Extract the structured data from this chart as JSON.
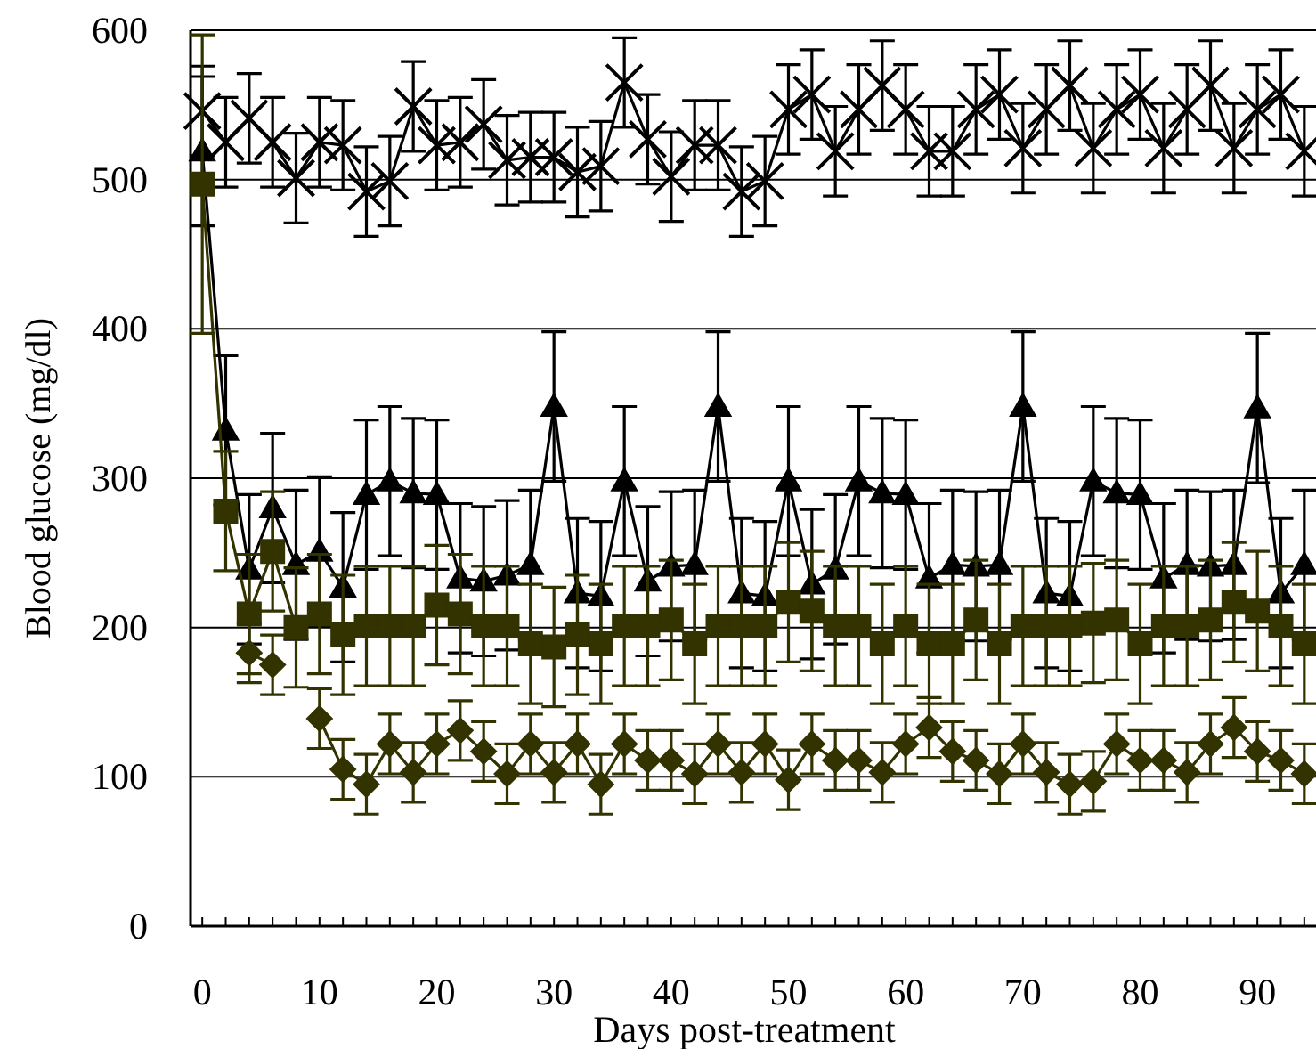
{
  "chart_data": {
    "type": "line",
    "xlabel": "Days post-treatment",
    "ylabel": "Blood glucose (mg/dl)",
    "x": [
      0,
      2,
      4,
      6,
      8,
      10,
      12,
      14,
      16,
      18,
      20,
      22,
      24,
      26,
      28,
      30,
      32,
      34,
      36,
      38,
      40,
      42,
      44,
      46,
      48,
      50,
      52,
      54,
      56,
      58,
      60,
      62,
      64,
      66,
      68,
      70,
      72,
      74,
      76,
      78,
      80,
      82,
      84,
      86,
      88,
      90,
      92,
      94
    ],
    "xlim": [
      -1,
      95
    ],
    "xticks": [
      0,
      {
        "value": 2,
        "label": null
      },
      {
        "value": 4,
        "label": null
      },
      {
        "value": 6,
        "label": null
      },
      {
        "value": 8,
        "label": null
      },
      10,
      {
        "value": 12,
        "label": null
      },
      {
        "value": 14,
        "label": null
      },
      {
        "value": 16,
        "label": null
      },
      {
        "value": 18,
        "label": null
      },
      20,
      {
        "value": 22,
        "label": null
      },
      {
        "value": 24,
        "label": null
      },
      {
        "value": 26,
        "label": null
      },
      {
        "value": 28,
        "label": null
      },
      30,
      {
        "value": 32,
        "label": null
      },
      {
        "value": 34,
        "label": null
      },
      {
        "value": 36,
        "label": null
      },
      {
        "value": 38,
        "label": null
      },
      40,
      {
        "value": 42,
        "label": null
      },
      {
        "value": 44,
        "label": null
      },
      {
        "value": 46,
        "label": null
      },
      {
        "value": 48,
        "label": null
      },
      50,
      {
        "value": 52,
        "label": null
      },
      {
        "value": 54,
        "label": null
      },
      {
        "value": 56,
        "label": null
      },
      {
        "value": 58,
        "label": null
      },
      60,
      {
        "value": 62,
        "label": null
      },
      {
        "value": 64,
        "label": null
      },
      {
        "value": 66,
        "label": null
      },
      {
        "value": 68,
        "label": null
      },
      70,
      {
        "value": 72,
        "label": null
      },
      {
        "value": 74,
        "label": null
      },
      {
        "value": 76,
        "label": null
      },
      {
        "value": 78,
        "label": null
      },
      80,
      {
        "value": 82,
        "label": null
      },
      {
        "value": 84,
        "label": null
      },
      {
        "value": 86,
        "label": null
      },
      {
        "value": 88,
        "label": null
      },
      90,
      {
        "value": 92,
        "label": null
      },
      {
        "value": 94,
        "label": null
      }
    ],
    "ylim": [
      0,
      600
    ],
    "yticks": [
      0,
      100,
      200,
      300,
      400,
      500,
      600
    ],
    "grid": "y",
    "series": [
      {
        "color": "#000000",
        "marker": "cross",
        "errors": [
          30,
          30,
          30,
          30,
          30,
          30,
          30,
          30,
          30,
          30,
          30,
          30,
          30,
          30,
          30,
          30,
          30,
          30,
          30,
          30,
          30,
          30,
          30,
          30,
          30,
          30,
          30,
          30,
          30,
          30,
          30,
          30,
          30,
          30,
          30,
          30,
          30,
          30,
          30,
          30,
          30,
          30,
          30,
          30,
          30,
          30,
          30,
          30
        ],
        "values": [
          546,
          525,
          541,
          525,
          501,
          525,
          523,
          492,
          499,
          549,
          523,
          525,
          537,
          513,
          515,
          515,
          505,
          509,
          565,
          527,
          502,
          523,
          523,
          492,
          499,
          547,
          557,
          519,
          547,
          563,
          547,
          519,
          519,
          547,
          557,
          521,
          547,
          563,
          521,
          547,
          557,
          521,
          547,
          563,
          521,
          547,
          557,
          519
        ]
      },
      {
        "color": "#000000",
        "marker": "triangle",
        "errors": [
          50,
          50,
          50,
          50,
          50,
          50,
          50,
          50,
          50,
          50,
          50,
          50,
          50,
          50,
          50,
          50,
          50,
          50,
          50,
          50,
          50,
          50,
          50,
          50,
          50,
          50,
          50,
          50,
          50,
          50,
          50,
          50,
          50,
          50,
          50,
          50,
          50,
          50,
          50,
          50,
          50,
          50,
          50,
          50,
          50,
          50,
          50,
          50
        ],
        "values": [
          519,
          332,
          239,
          280,
          242,
          251,
          227,
          289,
          298,
          290,
          289,
          233,
          231,
          235,
          242,
          348,
          223,
          221,
          298,
          231,
          241,
          242,
          348,
          223,
          221,
          298,
          229,
          239,
          298,
          290,
          289,
          233,
          242,
          241,
          242,
          348,
          223,
          221,
          298,
          290,
          289,
          233,
          242,
          241,
          242,
          347,
          223,
          242
        ]
      },
      {
        "color": "#333300",
        "marker": "square",
        "errors": [
          100,
          40,
          40,
          40,
          40,
          40,
          40,
          40,
          40,
          40,
          40,
          40,
          40,
          40,
          40,
          40,
          40,
          40,
          40,
          40,
          40,
          40,
          40,
          40,
          40,
          40,
          40,
          40,
          40,
          40,
          40,
          40,
          40,
          40,
          40,
          40,
          40,
          40,
          40,
          40,
          40,
          40,
          40,
          40,
          40,
          40,
          40,
          40
        ],
        "values": [
          497,
          278,
          209,
          251,
          200,
          209,
          195,
          201,
          201,
          201,
          215,
          209,
          201,
          201,
          189,
          187,
          195,
          189,
          201,
          201,
          205,
          189,
          201,
          201,
          201,
          217,
          211,
          201,
          201,
          189,
          201,
          189,
          189,
          205,
          189,
          201,
          201,
          201,
          203,
          205,
          189,
          201,
          201,
          205,
          217,
          211,
          201,
          189
        ]
      },
      {
        "color": "#333300",
        "marker": "diamond",
        "errors": [
          null,
          null,
          20,
          20,
          null,
          20,
          20,
          20,
          20,
          20,
          20,
          20,
          20,
          20,
          20,
          20,
          20,
          20,
          20,
          20,
          20,
          20,
          20,
          20,
          20,
          20,
          20,
          20,
          20,
          20,
          20,
          20,
          20,
          20,
          20,
          20,
          20,
          20,
          20,
          20,
          20,
          20,
          20,
          20,
          20,
          20,
          20,
          20
        ],
        "values": [
          null,
          null,
          183,
          175,
          null,
          139,
          105,
          95,
          122,
          103,
          122,
          131,
          117,
          102,
          122,
          103,
          122,
          95,
          122,
          111,
          111,
          102,
          122,
          103,
          122,
          98,
          122,
          111,
          111,
          103,
          122,
          133,
          117,
          111,
          102,
          122,
          103,
          95,
          97,
          122,
          111,
          111,
          103,
          122,
          133,
          117,
          111,
          102
        ]
      }
    ]
  }
}
